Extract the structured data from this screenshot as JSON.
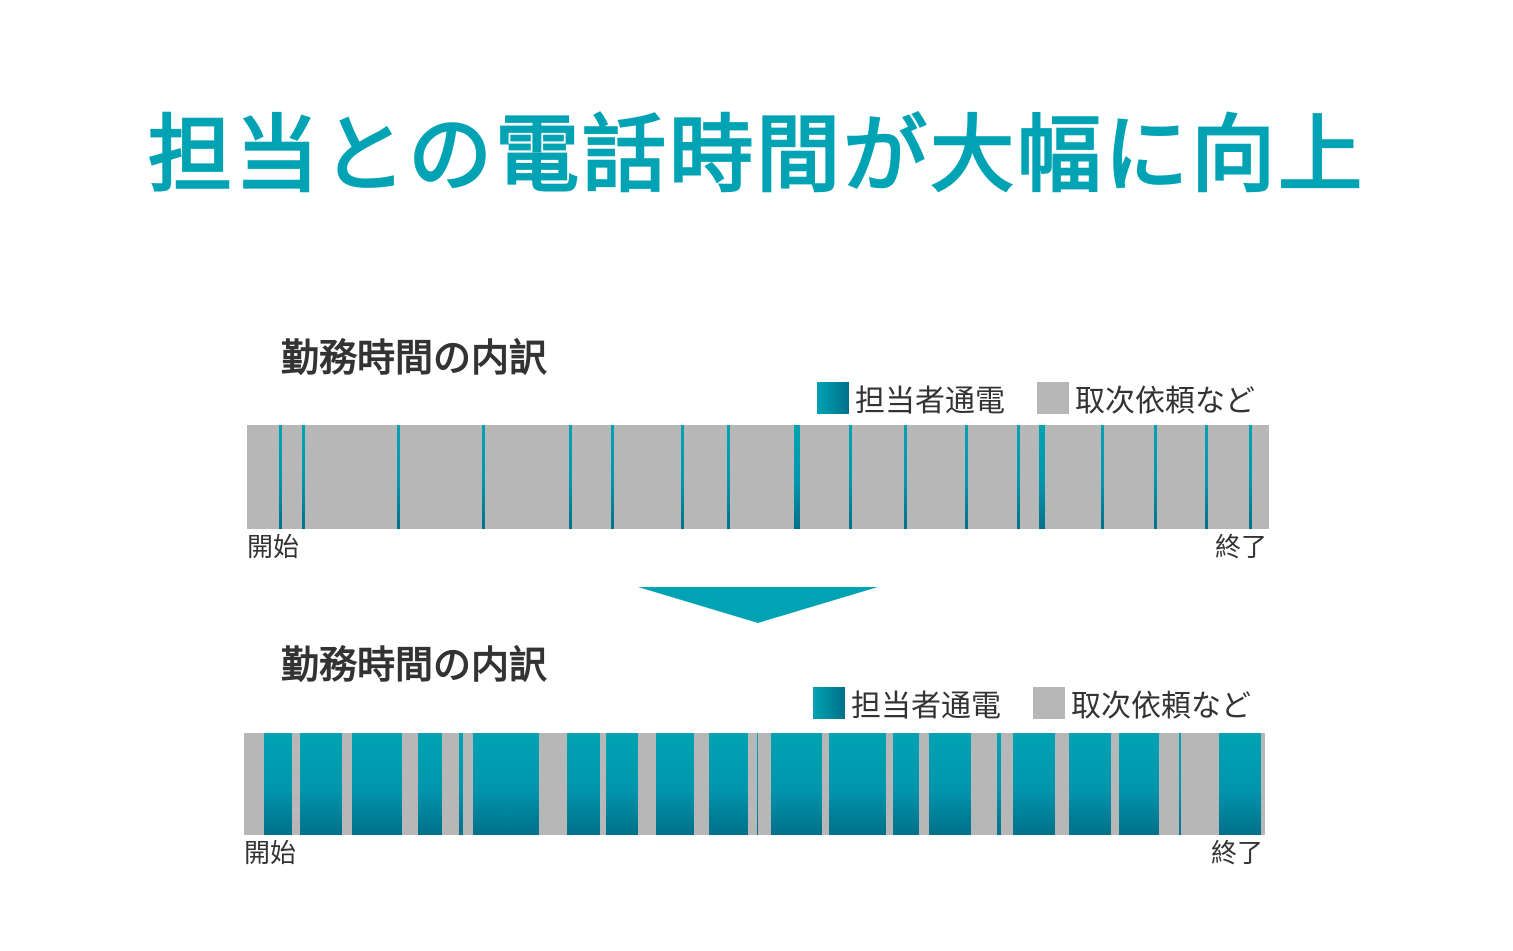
{
  "headline": "担当との電話時間が大幅に向上",
  "colors": {
    "accent": "#00a3b3",
    "call_dark": "#00708a",
    "other": "#b7b7b7",
    "text": "#333333"
  },
  "before": {
    "title": "勤務時間の内訳",
    "legend": {
      "call": "担当者通電",
      "other": "取次依頼など"
    },
    "start_label": "開始",
    "end_label": "終了",
    "call_segments": [
      [
        0.0313,
        0.0341
      ],
      [
        0.0538,
        0.0567
      ],
      [
        0.1468,
        0.1497
      ],
      [
        0.23,
        0.2329
      ],
      [
        0.3152,
        0.318
      ],
      [
        0.3563,
        0.3591
      ],
      [
        0.4248,
        0.4276
      ],
      [
        0.4697,
        0.4726
      ],
      [
        0.5352,
        0.5411
      ],
      [
        0.589,
        0.5919
      ],
      [
        0.6428,
        0.6457
      ],
      [
        0.7025,
        0.7054
      ],
      [
        0.7534,
        0.7562
      ],
      [
        0.7749,
        0.7807
      ],
      [
        0.8356,
        0.8385
      ],
      [
        0.8875,
        0.8904
      ],
      [
        0.9374,
        0.9403
      ],
      [
        0.9804,
        0.9833
      ]
    ]
  },
  "after": {
    "title": "勤務時間の内訳",
    "legend": {
      "call": "担当者通電",
      "other": "取次依頼など"
    },
    "start_label": "開始",
    "end_label": "終了",
    "call_segments": [
      [
        0.0196,
        0.047
      ],
      [
        0.0549,
        0.0959
      ],
      [
        0.1057,
        0.1546
      ],
      [
        0.1703,
        0.1938
      ],
      [
        0.2104,
        0.2143
      ],
      [
        0.2241,
        0.2886
      ],
      [
        0.316,
        0.3483
      ],
      [
        0.3542,
        0.3855
      ],
      [
        0.4031,
        0.4403
      ],
      [
        0.455,
        0.4941
      ],
      [
        0.502,
        0.5039
      ],
      [
        0.5157,
        0.5665
      ],
      [
        0.5733,
        0.6291
      ],
      [
        0.636,
        0.6614
      ],
      [
        0.6712,
        0.7123
      ],
      [
        0.7378,
        0.7417
      ],
      [
        0.7534,
        0.7945
      ],
      [
        0.8082,
        0.8492
      ],
      [
        0.8571,
        0.8963
      ],
      [
        0.9159,
        0.9178
      ],
      [
        0.955,
        0.9961
      ]
    ]
  }
}
